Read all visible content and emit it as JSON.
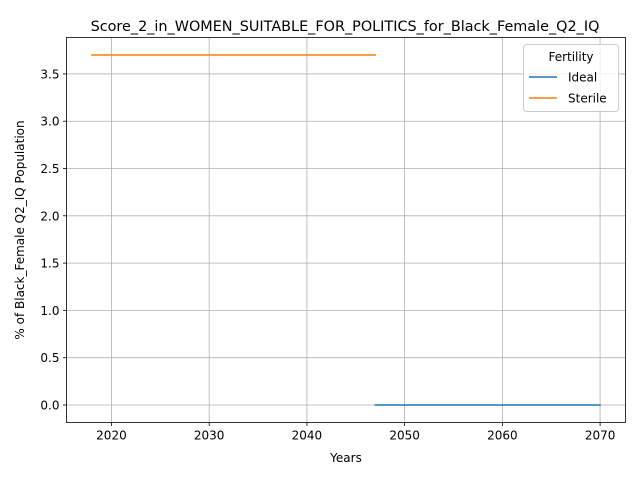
{
  "chart_data": {
    "type": "line",
    "title": "Score_2_in_WOMEN_SUITABLE_FOR_POLITICS_for_Black_Female_Q2_IQ",
    "xlabel": "Years",
    "ylabel": "% of Black_Female Q2_IQ Population",
    "xlim": [
      2015.4,
      2072.6
    ],
    "ylim": [
      -0.185,
      3.885
    ],
    "xticks": [
      2020,
      2030,
      2040,
      2050,
      2060,
      2070
    ],
    "yticks": [
      0.0,
      0.5,
      1.0,
      1.5,
      2.0,
      2.5,
      3.0,
      3.5
    ],
    "ytick_labels": [
      "0.0",
      "0.5",
      "1.0",
      "1.5",
      "2.0",
      "2.5",
      "3.0",
      "3.5"
    ],
    "grid": true,
    "legend": {
      "title": "Fertility",
      "placement": "top-right"
    },
    "series": [
      {
        "name": "Ideal",
        "color": "#1f77b4",
        "x": [
          2047,
          2070
        ],
        "y": [
          0.0,
          0.0
        ]
      },
      {
        "name": "Sterile",
        "color": "#ff7f0e",
        "x": [
          2018,
          2047
        ],
        "y": [
          3.7,
          3.7
        ]
      }
    ]
  }
}
